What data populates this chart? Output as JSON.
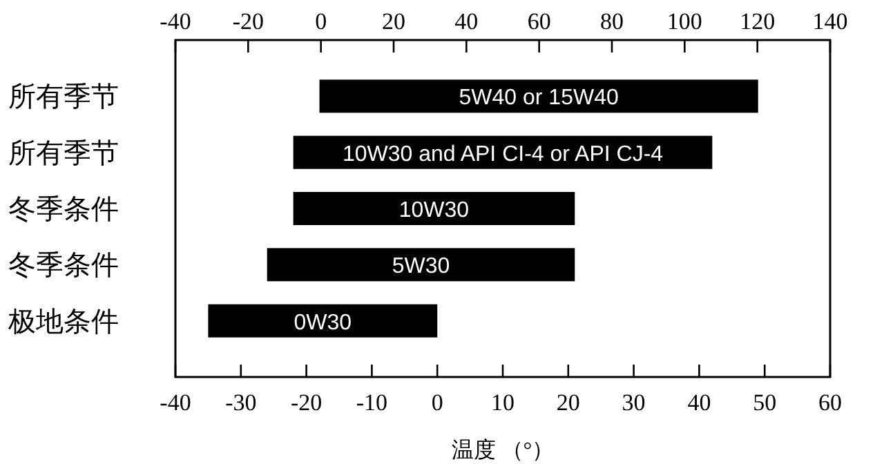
{
  "chart_data": {
    "type": "bar",
    "orientation": "horizontal",
    "xlabel": "温度 （°）",
    "categories": [
      "所有季节",
      "所有季节",
      "冬季条件",
      "冬季条件",
      "极地条件"
    ],
    "series": [
      {
        "name": "5W40 or 15W40",
        "color": "#000000",
        "base": [
          -18,
          null,
          null,
          null,
          null
        ],
        "values": [
          67,
          null,
          null,
          null,
          null
        ]
      },
      {
        "name": "10W30 and API CI-4 or API CJ-4",
        "color": "#000000",
        "base": [
          null,
          -22,
          null,
          null,
          null
        ],
        "values": [
          null,
          64,
          null,
          null,
          null
        ]
      },
      {
        "name": "10W30",
        "color": "#000000",
        "base": [
          null,
          null,
          -22,
          null,
          null
        ],
        "values": [
          null,
          null,
          43,
          null,
          null
        ]
      },
      {
        "name": "5W30",
        "color": "#000000",
        "base": [
          null,
          null,
          null,
          -26,
          null
        ],
        "values": [
          null,
          null,
          null,
          47,
          null
        ]
      },
      {
        "name": "0W30",
        "color": "#000000",
        "base": [
          null,
          null,
          null,
          null,
          -35
        ],
        "values": [
          null,
          null,
          null,
          null,
          35
        ]
      }
    ],
    "xlim": [
      -40,
      60
    ],
    "xticks": [
      -40,
      -30,
      -20,
      -10,
      0,
      10,
      20,
      30,
      40,
      50,
      60
    ],
    "x2lim": [
      -40,
      140
    ],
    "x2ticks": [
      -40,
      -20,
      0,
      20,
      40,
      60,
      80,
      100,
      120,
      140
    ],
    "grid": false,
    "legend": false
  }
}
